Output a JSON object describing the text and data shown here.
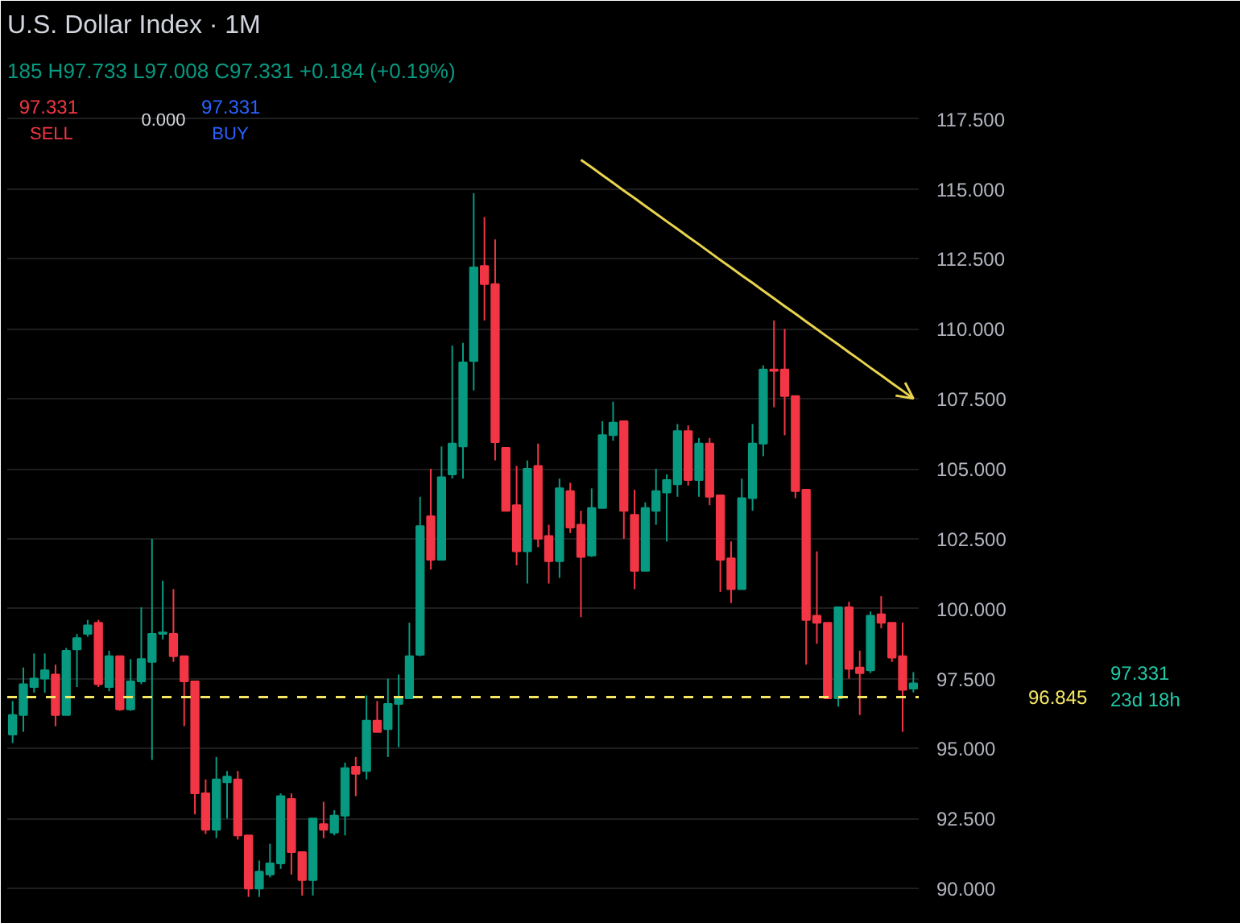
{
  "chart_data": {
    "type": "candlestick",
    "title": "U.S. Dollar Index · 1M",
    "subtitle": "185 H97.733 L97.008 C97.331 +0.184 (+0.19%)",
    "categories": [
      null,
      null,
      null,
      null,
      null,
      null,
      null,
      null,
      null,
      null,
      null,
      null,
      null,
      null,
      null,
      null,
      null,
      null,
      null,
      null,
      null,
      null,
      null,
      null,
      null,
      null,
      null,
      null,
      null,
      null,
      null,
      null,
      null,
      null,
      null,
      null,
      null,
      null,
      null,
      null,
      null,
      null,
      null,
      null,
      null,
      null,
      null,
      null,
      null,
      null,
      null,
      null,
      null,
      null,
      null,
      null,
      null,
      null,
      null,
      null,
      null,
      null,
      null,
      null,
      null,
      null,
      null,
      null,
      null,
      null,
      null,
      null,
      null,
      null,
      null,
      null,
      null,
      null,
      null,
      null,
      null,
      null,
      null,
      null,
      null
    ],
    "ohlc": [
      [
        95.5,
        96.7,
        95.2,
        96.2
      ],
      [
        96.2,
        97.9,
        95.6,
        97.3
      ],
      [
        97.2,
        98.4,
        97.0,
        97.5
      ],
      [
        97.5,
        98.4,
        97.0,
        97.8
      ],
      [
        97.65,
        98.0,
        95.8,
        96.2
      ],
      [
        96.2,
        98.6,
        96.2,
        98.5
      ],
      [
        98.55,
        99.1,
        97.2,
        98.95
      ],
      [
        99.1,
        99.6,
        99.0,
        99.4
      ],
      [
        99.5,
        99.6,
        97.2,
        97.3
      ],
      [
        97.2,
        98.5,
        97.05,
        98.3
      ],
      [
        98.3,
        98.3,
        96.35,
        96.4
      ],
      [
        96.4,
        98.2,
        96.35,
        97.4
      ],
      [
        97.4,
        100.05,
        97.3,
        98.2
      ],
      [
        98.1,
        102.5,
        94.6,
        99.1
      ],
      [
        99.1,
        101.0,
        98.9,
        99.15
      ],
      [
        99.1,
        100.7,
        98.1,
        98.3
      ],
      [
        98.3,
        98.3,
        95.8,
        97.4
      ],
      [
        97.4,
        97.4,
        92.65,
        93.4
      ],
      [
        93.4,
        93.9,
        91.95,
        92.1
      ],
      [
        92.1,
        94.7,
        91.8,
        93.9
      ],
      [
        93.8,
        94.2,
        92.5,
        94.0
      ],
      [
        93.9,
        94.2,
        91.75,
        91.9
      ],
      [
        91.9,
        91.9,
        89.7,
        90.0
      ],
      [
        90.0,
        91.0,
        89.7,
        90.6
      ],
      [
        90.5,
        91.6,
        90.4,
        90.9
      ],
      [
        90.9,
        93.4,
        90.7,
        93.3
      ],
      [
        93.2,
        93.4,
        90.5,
        91.3
      ],
      [
        91.3,
        91.3,
        89.75,
        90.3
      ],
      [
        90.3,
        92.5,
        89.75,
        92.5
      ],
      [
        92.3,
        93.1,
        91.8,
        92.1
      ],
      [
        92.0,
        92.8,
        91.9,
        92.6
      ],
      [
        92.6,
        94.5,
        91.9,
        94.3
      ],
      [
        94.35,
        94.7,
        93.3,
        94.1
      ],
      [
        94.2,
        96.9,
        93.9,
        96.0
      ],
      [
        96.0,
        96.7,
        95.6,
        95.6
      ],
      [
        95.7,
        97.5,
        94.7,
        96.6
      ],
      [
        96.6,
        97.65,
        95.05,
        96.85
      ],
      [
        96.8,
        99.5,
        96.8,
        98.3
      ],
      [
        98.35,
        104.0,
        98.3,
        102.95
      ],
      [
        103.3,
        105.0,
        101.4,
        101.75
      ],
      [
        101.75,
        105.8,
        101.75,
        104.7
      ],
      [
        104.8,
        109.4,
        104.65,
        105.9
      ],
      [
        105.8,
        109.5,
        104.65,
        108.8
      ],
      [
        108.85,
        114.85,
        107.8,
        112.2
      ],
      [
        112.25,
        114.0,
        110.3,
        111.6
      ],
      [
        111.6,
        113.2,
        105.3,
        105.95
      ],
      [
        105.75,
        105.75,
        103.5,
        103.5
      ],
      [
        103.7,
        105.1,
        101.55,
        102.05
      ],
      [
        102.05,
        105.3,
        100.9,
        105.0
      ],
      [
        105.1,
        105.9,
        102.2,
        102.5
      ],
      [
        102.6,
        103.0,
        100.9,
        101.7
      ],
      [
        101.7,
        104.65,
        101.1,
        104.3
      ],
      [
        104.2,
        104.5,
        102.7,
        102.9
      ],
      [
        103.0,
        103.5,
        99.7,
        101.85
      ],
      [
        101.9,
        104.3,
        101.85,
        103.6
      ],
      [
        103.6,
        106.7,
        103.6,
        106.2
      ],
      [
        106.2,
        107.4,
        106.0,
        106.65
      ],
      [
        106.7,
        106.7,
        102.5,
        103.5
      ],
      [
        103.35,
        104.25,
        100.7,
        101.35
      ],
      [
        101.35,
        103.8,
        101.35,
        103.6
      ],
      [
        103.5,
        105.0,
        103.0,
        104.2
      ],
      [
        104.15,
        104.8,
        102.4,
        104.6
      ],
      [
        104.45,
        106.6,
        104.0,
        106.35
      ],
      [
        106.35,
        106.55,
        104.4,
        104.6
      ],
      [
        104.6,
        106.1,
        104.0,
        105.9
      ],
      [
        105.9,
        106.1,
        103.7,
        104.0
      ],
      [
        104.05,
        104.05,
        100.6,
        101.75
      ],
      [
        101.8,
        102.4,
        100.2,
        100.7
      ],
      [
        100.7,
        104.65,
        100.7,
        103.95
      ],
      [
        103.95,
        106.6,
        103.5,
        105.9
      ],
      [
        105.9,
        108.7,
        105.45,
        108.55
      ],
      [
        108.55,
        110.3,
        107.2,
        108.5
      ],
      [
        108.55,
        110.0,
        106.2,
        107.6
      ],
      [
        107.6,
        107.6,
        103.95,
        104.2
      ],
      [
        104.25,
        104.25,
        98.0,
        99.6
      ],
      [
        99.75,
        102.05,
        98.75,
        99.5
      ],
      [
        99.5,
        99.5,
        96.8,
        96.8
      ],
      [
        96.8,
        100.05,
        96.5,
        100.05
      ],
      [
        100.05,
        100.25,
        97.5,
        97.85
      ],
      [
        97.9,
        98.5,
        96.2,
        97.7
      ],
      [
        97.8,
        99.9,
        97.7,
        99.75
      ],
      [
        99.8,
        100.45,
        99.3,
        99.5
      ],
      [
        99.5,
        99.5,
        98.1,
        98.25
      ],
      [
        98.3,
        99.5,
        95.6,
        97.1
      ],
      [
        97.147,
        97.733,
        97.008,
        97.331
      ]
    ],
    "colors": [
      "#089981",
      "#089981",
      "#089981",
      "#089981",
      "#f23645",
      "#089981",
      "#089981",
      "#089981",
      "#f23645",
      "#089981",
      "#f23645",
      "#089981",
      "#089981",
      "#089981",
      "#089981",
      "#f23645",
      "#f23645",
      "#f23645",
      "#f23645",
      "#089981",
      "#089981",
      "#f23645",
      "#f23645",
      "#089981",
      "#089981",
      "#089981",
      "#f23645",
      "#f23645",
      "#089981",
      "#f23645",
      "#089981",
      "#089981",
      "#f23645",
      "#089981",
      "#f23645",
      "#089981",
      "#089981",
      "#089981",
      "#089981",
      "#f23645",
      "#089981",
      "#089981",
      "#089981",
      "#089981",
      "#f23645",
      "#f23645",
      "#f23645",
      "#f23645",
      "#089981",
      "#f23645",
      "#f23645",
      "#089981",
      "#f23645",
      "#f23645",
      "#089981",
      "#089981",
      "#089981",
      "#f23645",
      "#f23645",
      "#089981",
      "#089981",
      "#089981",
      "#089981",
      "#f23645",
      "#089981",
      "#f23645",
      "#f23645",
      "#f23645",
      "#089981",
      "#089981",
      "#089981",
      "#f23645",
      "#f23645",
      "#f23645",
      "#f23645",
      "#f23645",
      "#f23645",
      "#089981",
      "#f23645",
      "#f23645",
      "#089981",
      "#f23645",
      "#f23645",
      "#f23645",
      "#089981"
    ],
    "series": [
      {
        "type": "line",
        "color": "#e8d44d",
        "values": [
          null,
          null,
          null,
          null,
          null,
          null,
          null,
          null,
          null,
          null,
          null,
          null,
          null,
          null,
          null,
          null,
          null,
          null,
          null,
          null,
          null,
          null,
          null,
          null,
          null,
          null,
          null,
          null,
          null,
          null,
          null,
          null,
          null,
          null,
          null,
          null,
          null,
          null,
          null,
          null,
          null,
          null,
          null,
          null,
          null,
          null,
          null,
          null,
          null,
          null,
          null,
          null,
          null,
          116.04,
          115.77,
          115.49,
          115.22,
          114.94,
          114.67,
          114.39,
          114.12,
          113.84,
          113.57,
          113.29,
          113.02,
          112.74,
          112.46,
          112.19,
          111.91,
          111.64,
          111.36,
          111.09,
          110.81,
          110.54,
          110.26,
          109.99,
          109.71,
          109.44,
          109.16,
          108.89,
          108.61,
          108.34,
          108.06,
          107.79,
          107.51
        ]
      }
    ],
    "ylim": [
      89.2,
      118.5
    ],
    "yticks": [
      {
        "value": 90,
        "label": "90.000"
      },
      {
        "value": 92.5,
        "label": "92.500"
      },
      {
        "value": 95,
        "label": "95.000"
      },
      {
        "value": 97.5,
        "label": "97.500"
      },
      {
        "value": 100,
        "label": "100.000"
      },
      {
        "value": 102.5,
        "label": "102.500"
      },
      {
        "value": 105,
        "label": "105.000"
      },
      {
        "value": 107.5,
        "label": "107.500"
      },
      {
        "value": 110,
        "label": "110.000"
      },
      {
        "value": 112.5,
        "label": "112.500"
      },
      {
        "value": 115,
        "label": "115.000"
      },
      {
        "value": 117.5,
        "label": "117.500"
      }
    ],
    "ref_lines": [
      {
        "axis": "y",
        "value": 96.845,
        "label": "96.845",
        "color": "#f5e663",
        "line_style": "dashed"
      }
    ],
    "annotations": [
      "97.331",
      "SELL",
      "0.000",
      "97.331",
      "BUY",
      "97.331",
      "23d 18h"
    ],
    "grid": "y",
    "tick_labels": "y"
  }
}
